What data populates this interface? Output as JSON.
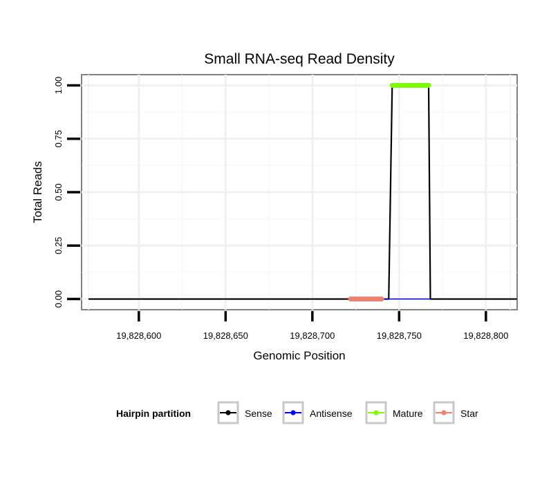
{
  "chart_data": {
    "type": "line",
    "title": "Small RNA-seq Read Density",
    "xlabel": "Genomic Position",
    "ylabel": "Total Reads",
    "xlim": [
      19828567,
      19828818
    ],
    "ylim": [
      -0.05,
      1.05
    ],
    "x_ticks": [
      19828600,
      19828650,
      19828700,
      19828750,
      19828800
    ],
    "x_tick_labels": [
      "19,828,600",
      "19,828,650",
      "19,828,700",
      "19,828,750",
      "19,828,800"
    ],
    "y_ticks": [
      0,
      0.25,
      0.5,
      0.75,
      1.0
    ],
    "y_tick_labels": [
      "0.00",
      "0.25",
      "0.50",
      "0.75",
      "1.00"
    ],
    "grid": true,
    "legend": {
      "title": "Hairpin partition",
      "position": "bottom",
      "entries": [
        {
          "label": "Sense",
          "color": "#000000"
        },
        {
          "label": "Antisense",
          "color": "#0000ff"
        },
        {
          "label": "Mature",
          "color": "#7cfc00"
        },
        {
          "label": "Star",
          "color": "#f08070"
        }
      ]
    },
    "series": [
      {
        "name": "Sense",
        "color": "#000000",
        "x": [
          19828571,
          19828744,
          19828746,
          19828767,
          19828768,
          19828818
        ],
        "y": [
          0,
          0,
          1,
          1,
          0,
          0
        ]
      },
      {
        "name": "Antisense",
        "color": "#0000ff",
        "x": [
          19828740,
          19828768
        ],
        "y": [
          0,
          0
        ]
      },
      {
        "name": "Mature",
        "color": "#7cfc00",
        "x": [
          19828746,
          19828767
        ],
        "y": [
          1,
          1
        ]
      },
      {
        "name": "Star",
        "color": "#f08070",
        "x": [
          19828722,
          19828740
        ],
        "y": [
          0,
          0
        ]
      }
    ]
  }
}
